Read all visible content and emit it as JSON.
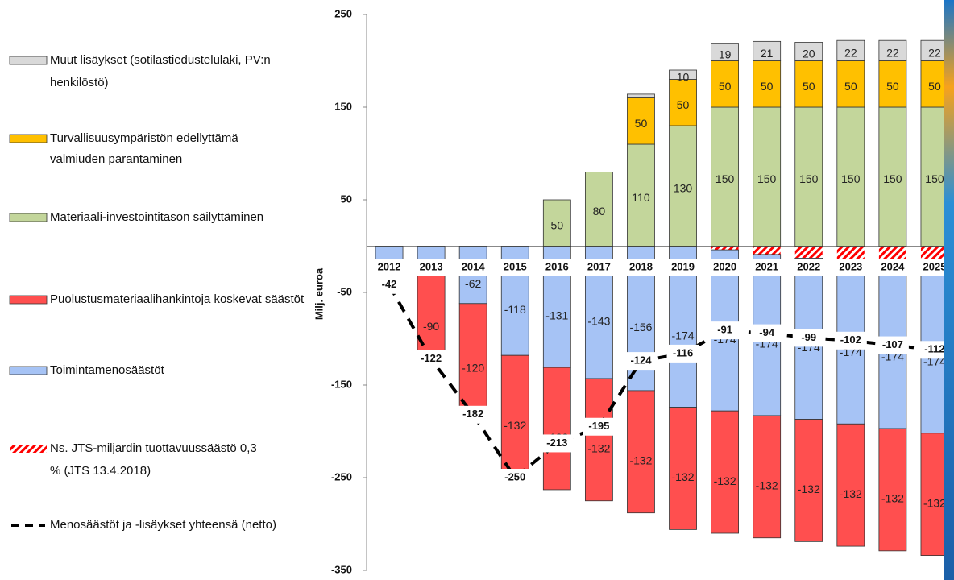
{
  "chart_data": {
    "type": "bar",
    "y_label": "Milj. euroa",
    "categories": [
      "2012",
      "2013",
      "2014",
      "2015",
      "2016",
      "2017",
      "2018",
      "2019",
      "2020",
      "2021",
      "2022",
      "2023",
      "2024",
      "2025"
    ],
    "ylim": [
      -350,
      250
    ],
    "yticks": [
      250,
      150,
      50,
      -50,
      -150,
      -250,
      -350
    ],
    "series": [
      {
        "name": "Muut lisäykset (sotilastiedustelulaki, PV:n henkilöstö)",
        "color": "#d9d9d9",
        "values": [
          null,
          null,
          null,
          null,
          null,
          null,
          4,
          10,
          19,
          21,
          20,
          22,
          22,
          22
        ]
      },
      {
        "name": "Turvallisuusympäristön edellyttämä valmiuden parantaminen",
        "color": "#ffc000",
        "values": [
          null,
          null,
          null,
          null,
          null,
          null,
          50,
          50,
          50,
          50,
          50,
          50,
          50,
          50
        ]
      },
      {
        "name": "Materiaali-investointitason säilyttäminen",
        "color": "#c3d69b",
        "values": [
          null,
          null,
          null,
          null,
          50,
          80,
          110,
          130,
          150,
          150,
          150,
          150,
          150,
          150
        ]
      },
      {
        "name": "Puolustusmateriaalihankintoja koskevat säästöt",
        "color": "#ff4f4f",
        "values": [
          null,
          -90,
          -120,
          -132,
          -132,
          -132,
          -132,
          -132,
          -132,
          -132,
          -132,
          -132,
          -132,
          -132
        ]
      },
      {
        "name": "Toimintamenosäästöt",
        "color": "#a6c3f5",
        "values": [
          -42,
          -32,
          -62,
          -118,
          -131,
          -143,
          -156,
          -174,
          -174,
          -174,
          -174,
          -174,
          -174,
          -174
        ]
      },
      {
        "name": "Ns. JTS-miljardin tuottavuussäästö 0,3 % (JTS 13.4.2018)",
        "color": "#ff0000",
        "pattern": "hatch",
        "values": [
          null,
          null,
          null,
          null,
          null,
          null,
          null,
          null,
          -4,
          -9,
          -13,
          -18,
          -23,
          -28
        ]
      },
      {
        "name": "Menosäästöt ja -lisäykset yhteensä (netto)",
        "color": "#000000",
        "type": "line",
        "values": [
          -42,
          -122,
          -182,
          -250,
          -213,
          -195,
          -124,
          -116,
          -91,
          -94,
          -99,
          -102,
          -107,
          -112
        ]
      }
    ]
  }
}
